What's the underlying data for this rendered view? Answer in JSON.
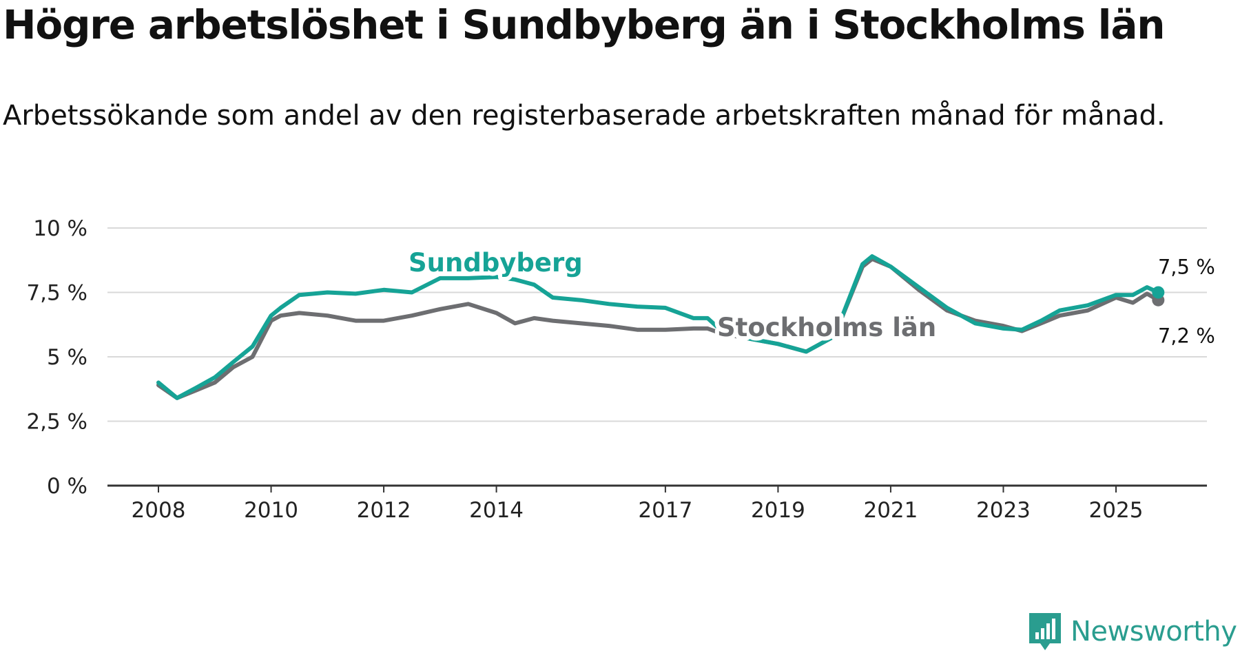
{
  "header": {
    "title": "Högre arbetslöshet i Sundbyberg än i Stockholms län",
    "subtitle": "Arbetssökande som andel av den registerbaserade arbetskraften månad för månad."
  },
  "brand": {
    "name": "Newsworthy",
    "icon": "newsworthy-logo-icon",
    "color": "#2a9d8f"
  },
  "chart_data": {
    "type": "line",
    "title": "Högre arbetslöshet i Sundbyberg än i Stockholms län",
    "xlabel": "",
    "ylabel": "",
    "xlim": [
      2008,
      2026
    ],
    "ylim": [
      0,
      10
    ],
    "grid": true,
    "y_ticks": [
      {
        "value": 0,
        "label": "0 %"
      },
      {
        "value": 2.5,
        "label": "2,5 %"
      },
      {
        "value": 5,
        "label": "5 %"
      },
      {
        "value": 7.5,
        "label": "7,5 %"
      },
      {
        "value": 10,
        "label": "10 %"
      }
    ],
    "x_ticks": [
      {
        "value": 2008,
        "label": "2008"
      },
      {
        "value": 2010,
        "label": "2010"
      },
      {
        "value": 2012,
        "label": "2012"
      },
      {
        "value": 2014,
        "label": "2014"
      },
      {
        "value": 2017,
        "label": "2017"
      },
      {
        "value": 2019,
        "label": "2019"
      },
      {
        "value": 2021,
        "label": "2021"
      },
      {
        "value": 2023,
        "label": "2023"
      },
      {
        "value": 2025,
        "label": "2025"
      }
    ],
    "series": [
      {
        "name": "Stockholms län",
        "label": "Stockholms län",
        "color": "#6d6e71",
        "end_label": "7,2 %",
        "points": [
          [
            2008.0,
            3.9
          ],
          [
            2008.33,
            3.4
          ],
          [
            2008.67,
            3.7
          ],
          [
            2009.0,
            4.0
          ],
          [
            2009.33,
            4.6
          ],
          [
            2009.67,
            5.0
          ],
          [
            2010.0,
            6.4
          ],
          [
            2010.17,
            6.6
          ],
          [
            2010.5,
            6.7
          ],
          [
            2011.0,
            6.6
          ],
          [
            2011.5,
            6.4
          ],
          [
            2012.0,
            6.4
          ],
          [
            2012.5,
            6.6
          ],
          [
            2013.0,
            6.85
          ],
          [
            2013.5,
            7.05
          ],
          [
            2014.0,
            6.7
          ],
          [
            2014.33,
            6.3
          ],
          [
            2014.67,
            6.5
          ],
          [
            2015.0,
            6.4
          ],
          [
            2015.5,
            6.3
          ],
          [
            2016.0,
            6.2
          ],
          [
            2016.5,
            6.05
          ],
          [
            2017.0,
            6.05
          ],
          [
            2017.5,
            6.1
          ],
          [
            2017.75,
            6.1
          ],
          [
            2018.0,
            5.9
          ],
          [
            2018.5,
            5.7
          ],
          [
            2019.0,
            5.5
          ],
          [
            2019.5,
            5.2
          ],
          [
            2020.0,
            5.8
          ],
          [
            2020.5,
            8.5
          ],
          [
            2020.67,
            8.8
          ],
          [
            2021.0,
            8.5
          ],
          [
            2021.5,
            7.6
          ],
          [
            2022.0,
            6.8
          ],
          [
            2022.5,
            6.4
          ],
          [
            2023.0,
            6.2
          ],
          [
            2023.33,
            6.0
          ],
          [
            2023.67,
            6.3
          ],
          [
            2024.0,
            6.6
          ],
          [
            2024.5,
            6.8
          ],
          [
            2025.0,
            7.3
          ],
          [
            2025.3,
            7.1
          ],
          [
            2025.55,
            7.45
          ],
          [
            2025.75,
            7.2
          ]
        ]
      },
      {
        "name": "Sundbyberg",
        "label": "Sundbyberg",
        "color": "#16a396",
        "end_label": "7,5 %",
        "points": [
          [
            2008.0,
            4.0
          ],
          [
            2008.33,
            3.4
          ],
          [
            2008.67,
            3.8
          ],
          [
            2009.0,
            4.2
          ],
          [
            2009.33,
            4.8
          ],
          [
            2009.67,
            5.4
          ],
          [
            2010.0,
            6.6
          ],
          [
            2010.17,
            6.9
          ],
          [
            2010.5,
            7.4
          ],
          [
            2011.0,
            7.5
          ],
          [
            2011.5,
            7.45
          ],
          [
            2012.0,
            7.6
          ],
          [
            2012.5,
            7.5
          ],
          [
            2013.0,
            8.05
          ],
          [
            2013.5,
            8.05
          ],
          [
            2014.0,
            8.1
          ],
          [
            2014.33,
            8.0
          ],
          [
            2014.67,
            7.8
          ],
          [
            2015.0,
            7.3
          ],
          [
            2015.5,
            7.2
          ],
          [
            2016.0,
            7.05
          ],
          [
            2016.5,
            6.95
          ],
          [
            2017.0,
            6.9
          ],
          [
            2017.5,
            6.5
          ],
          [
            2017.75,
            6.5
          ],
          [
            2018.0,
            6.0
          ],
          [
            2018.5,
            5.7
          ],
          [
            2019.0,
            5.5
          ],
          [
            2019.5,
            5.2
          ],
          [
            2020.0,
            5.8
          ],
          [
            2020.5,
            8.6
          ],
          [
            2020.67,
            8.9
          ],
          [
            2021.0,
            8.5
          ],
          [
            2021.5,
            7.7
          ],
          [
            2022.0,
            6.9
          ],
          [
            2022.5,
            6.3
          ],
          [
            2023.0,
            6.1
          ],
          [
            2023.33,
            6.05
          ],
          [
            2023.67,
            6.4
          ],
          [
            2024.0,
            6.8
          ],
          [
            2024.5,
            7.0
          ],
          [
            2025.0,
            7.4
          ],
          [
            2025.3,
            7.4
          ],
          [
            2025.55,
            7.7
          ],
          [
            2025.75,
            7.5
          ]
        ]
      }
    ]
  }
}
